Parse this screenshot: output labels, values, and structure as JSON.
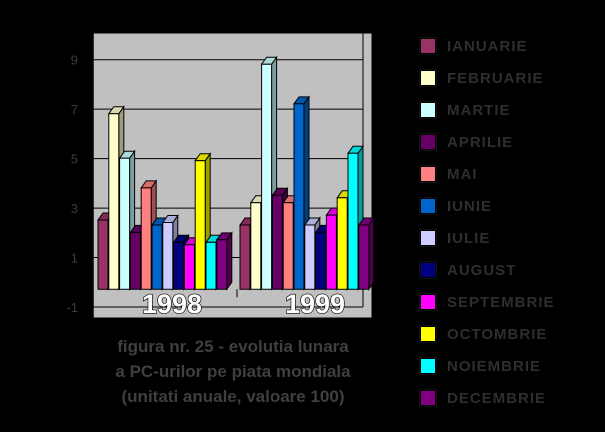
{
  "background_color": "#000000",
  "chart_data": {
    "type": "bar",
    "style": "3d-column",
    "title": "",
    "categories": [
      "1998",
      "1999"
    ],
    "series": [
      {
        "name": "IANUARIE",
        "color": "#993366",
        "values": [
          2.8,
          2.6
        ]
      },
      {
        "name": "FEBRUARIE",
        "color": "#FFFFCC",
        "values": [
          7.1,
          3.5
        ]
      },
      {
        "name": "MARTIE",
        "color": "#CCFFFF",
        "values": [
          5.3,
          9.1
        ]
      },
      {
        "name": "APRILIE",
        "color": "#660066",
        "values": [
          2.3,
          3.8
        ]
      },
      {
        "name": "MAI",
        "color": "#FF8080",
        "values": [
          4.1,
          3.5
        ]
      },
      {
        "name": "IUNIE",
        "color": "#0066CC",
        "values": [
          2.6,
          7.5
        ]
      },
      {
        "name": "IULIE",
        "color": "#CCCCFF",
        "values": [
          2.7,
          2.6
        ]
      },
      {
        "name": "AUGUST",
        "color": "#000080",
        "values": [
          1.9,
          2.3
        ]
      },
      {
        "name": "SEPTEMBRIE",
        "color": "#FF00FF",
        "values": [
          1.8,
          3.0
        ]
      },
      {
        "name": "OCTOMBRIE",
        "color": "#FFFF00",
        "values": [
          5.2,
          3.7
        ]
      },
      {
        "name": "NOIEMBRIE",
        "color": "#00FFFF",
        "values": [
          1.9,
          5.5
        ]
      },
      {
        "name": "DECEMBRIE",
        "color": "#800080",
        "values": [
          2.0,
          2.6
        ]
      }
    ],
    "y_axis": {
      "min": -1,
      "max": 10,
      "major_unit": 2,
      "tick_labels": [
        "9",
        "7",
        "5",
        "3",
        "1",
        "-1"
      ]
    },
    "grid": true,
    "legend_position": "right",
    "wall_color": "#C0C0C0",
    "category_label_color": "#FFFFFF"
  },
  "legend": {
    "items": [
      {
        "label": "IANUARIE",
        "color": "#993366"
      },
      {
        "label": "FEBRUARIE",
        "color": "#FFFFCC"
      },
      {
        "label": "MARTIE",
        "color": "#CCFFFF"
      },
      {
        "label": "APRILIE",
        "color": "#660066"
      },
      {
        "label": "MAI",
        "color": "#FF8080"
      },
      {
        "label": "IUNIE",
        "color": "#0066CC"
      },
      {
        "label": "IULIE",
        "color": "#CCCCFF"
      },
      {
        "label": "AUGUST",
        "color": "#000080"
      },
      {
        "label": "SEPTEMBRIE",
        "color": "#FF00FF"
      },
      {
        "label": "OCTOMBRIE",
        "color": "#FFFF00"
      },
      {
        "label": "NOIEMBRIE",
        "color": "#00FFFF"
      },
      {
        "label": "DECEMBRIE",
        "color": "#800080"
      }
    ]
  },
  "caption": {
    "lines": [
      "figura nr. 25 - evolutia lunara",
      "a PC-urilor pe piata mondiala",
      "(unitati anuale, valoare 100)"
    ]
  }
}
